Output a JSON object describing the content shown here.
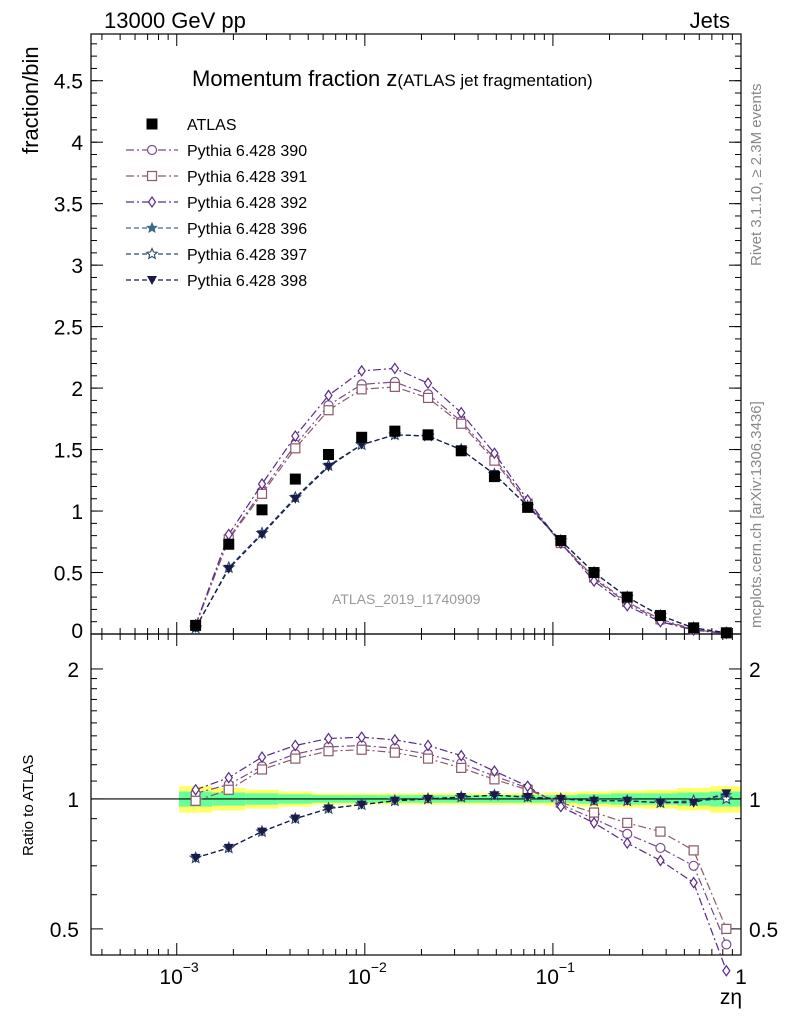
{
  "header": {
    "left": "13000 GeV pp",
    "right": "Jets"
  },
  "title": {
    "main": "Momentum fraction z",
    "sub": "(ATLAS jet fragmentation)"
  },
  "axes": {
    "ylabel_top": "fraction/bin",
    "ylabel_bottom": "Ratio to ATLAS",
    "xlabel": "zη"
  },
  "analysis_id": "ATLAS_2019_I1740909",
  "side_text": {
    "rivet": "Rivet 3.1.10, ≥ 2.3M events",
    "mcplots": "mcplots.cern.ch [arXiv:1306.3436]"
  },
  "chart_data": [
    {
      "type": "scatter",
      "xscale": "log",
      "xlim": [
        0.00035,
        1.0
      ],
      "ylim": [
        0,
        4.88
      ],
      "yticks": [
        0,
        0.5,
        1,
        1.5,
        2,
        2.5,
        3,
        3.5,
        4,
        4.5
      ],
      "ytick_labels": [
        "0",
        "0.5",
        "1",
        "1.5",
        "2",
        "2.5",
        "3",
        "3.5",
        "4",
        "4.5"
      ],
      "legend_placement": "top-left",
      "x": [
        0.00126,
        0.00189,
        0.00284,
        0.00427,
        0.00641,
        0.00962,
        0.01444,
        0.02168,
        0.03255,
        0.04887,
        0.07338,
        0.11018,
        0.16543,
        0.24839,
        0.37295,
        0.56,
        0.836
      ],
      "data": {
        "name": "ATLAS",
        "values": [
          0.07,
          0.73,
          1.01,
          1.26,
          1.46,
          1.6,
          1.65,
          1.62,
          1.49,
          1.28,
          1.03,
          0.76,
          0.5,
          0.3,
          0.15,
          0.05,
          0.01
        ]
      },
      "series": [
        {
          "name": "Pythia 6.428 390",
          "color": "#7a4a8a",
          "marker": "circle-open",
          "line": "dashdot",
          "values": [
            0.07,
            0.78,
            1.16,
            1.54,
            1.86,
            2.03,
            2.05,
            1.95,
            1.73,
            1.43,
            1.07,
            0.74,
            0.45,
            0.25,
            0.11,
            0.035,
            0.0045
          ]
        },
        {
          "name": "Pythia 6.428 391",
          "color": "#8a5a6a",
          "marker": "square-open",
          "line": "dashdot",
          "values": [
            0.07,
            0.77,
            1.14,
            1.51,
            1.82,
            1.99,
            2.01,
            1.92,
            1.71,
            1.41,
            1.06,
            0.74,
            0.46,
            0.26,
            0.12,
            0.038,
            0.005
          ]
        },
        {
          "name": "Pythia 6.428 392",
          "color": "#5a2a8a",
          "marker": "diamond-open",
          "line": "dashdot",
          "values": [
            0.075,
            0.81,
            1.22,
            1.61,
            1.94,
            2.14,
            2.16,
            2.04,
            1.8,
            1.47,
            1.09,
            0.74,
            0.43,
            0.23,
            0.1,
            0.032,
            0.004
          ]
        },
        {
          "name": "Pythia 6.428 396",
          "color": "#3a6a8a",
          "marker": "star-filled",
          "line": "dashed",
          "values": [
            0.05,
            0.54,
            0.82,
            1.11,
            1.37,
            1.54,
            1.62,
            1.61,
            1.5,
            1.3,
            1.04,
            0.76,
            0.5,
            0.3,
            0.15,
            0.05,
            0.01
          ]
        },
        {
          "name": "Pythia 6.428 397",
          "color": "#2a4a6a",
          "marker": "star-open",
          "line": "dashed",
          "values": [
            0.05,
            0.54,
            0.82,
            1.11,
            1.37,
            1.54,
            1.62,
            1.61,
            1.5,
            1.3,
            1.04,
            0.76,
            0.5,
            0.3,
            0.15,
            0.05,
            0.01
          ]
        },
        {
          "name": "Pythia 6.428 398",
          "color": "#1a1a4a",
          "marker": "triangle-down-filled",
          "line": "dashed",
          "values": [
            0.05,
            0.53,
            0.81,
            1.1,
            1.36,
            1.54,
            1.62,
            1.61,
            1.5,
            1.3,
            1.04,
            0.76,
            0.5,
            0.3,
            0.15,
            0.05,
            0.01
          ]
        }
      ]
    },
    {
      "type": "line",
      "xscale": "log",
      "yscale": "log",
      "xlim": [
        0.00035,
        1.0
      ],
      "ylim": [
        0.435,
        2.41
      ],
      "yticks": [
        0.5,
        1,
        2
      ],
      "ytick_labels": [
        "0.5",
        "1",
        "2"
      ],
      "xticks": [
        0.001,
        0.01,
        0.1,
        1
      ],
      "xtick_labels": [
        "10",
        "10",
        "10",
        "1"
      ],
      "xtick_exponents": [
        "−3",
        "−2",
        "−1",
        ""
      ],
      "band_colors": {
        "outer": "#ffff66",
        "inner": "#66ff99"
      },
      "band_outer": [
        0.07,
        0.06,
        0.05,
        0.04,
        0.03,
        0.03,
        0.03,
        0.03,
        0.03,
        0.03,
        0.03,
        0.035,
        0.04,
        0.045,
        0.05,
        0.06,
        0.07
      ],
      "band_inner": [
        0.04,
        0.035,
        0.03,
        0.025,
        0.02,
        0.02,
        0.02,
        0.02,
        0.02,
        0.02,
        0.02,
        0.02,
        0.025,
        0.03,
        0.03,
        0.035,
        0.04
      ],
      "x": [
        0.00126,
        0.00189,
        0.00284,
        0.00427,
        0.00641,
        0.00962,
        0.01444,
        0.02168,
        0.03255,
        0.04887,
        0.07338,
        0.11018,
        0.16543,
        0.24839,
        0.37295,
        0.56,
        0.836
      ],
      "series": [
        {
          "name": "Pythia 6.428 390",
          "values": [
            1.03,
            1.08,
            1.19,
            1.27,
            1.32,
            1.33,
            1.31,
            1.27,
            1.21,
            1.13,
            1.06,
            0.97,
            0.9,
            0.83,
            0.77,
            0.7,
            0.46
          ]
        },
        {
          "name": "Pythia 6.428 391",
          "values": [
            0.99,
            1.05,
            1.17,
            1.24,
            1.29,
            1.3,
            1.28,
            1.24,
            1.18,
            1.11,
            1.05,
            0.98,
            0.93,
            0.88,
            0.84,
            0.76,
            0.5
          ]
        },
        {
          "name": "Pythia 6.428 392",
          "values": [
            1.05,
            1.12,
            1.25,
            1.33,
            1.38,
            1.39,
            1.37,
            1.33,
            1.26,
            1.16,
            1.07,
            0.96,
            0.88,
            0.79,
            0.72,
            0.64,
            0.4
          ]
        },
        {
          "name": "Pythia 6.428 396",
          "values": [
            0.73,
            0.77,
            0.84,
            0.9,
            0.95,
            0.97,
            0.99,
            1.0,
            1.01,
            1.02,
            1.01,
            1.0,
            0.99,
            0.99,
            0.98,
            0.99,
            1.02
          ]
        },
        {
          "name": "Pythia 6.428 397",
          "values": [
            0.73,
            0.77,
            0.84,
            0.9,
            0.95,
            0.97,
            0.99,
            1.0,
            1.01,
            1.02,
            1.01,
            1.0,
            0.99,
            0.99,
            0.98,
            0.99,
            1.0
          ]
        },
        {
          "name": "Pythia 6.428 398",
          "values": [
            0.73,
            0.77,
            0.84,
            0.9,
            0.95,
            0.97,
            0.99,
            1.0,
            1.01,
            1.02,
            1.01,
            1.0,
            0.99,
            0.99,
            0.98,
            0.98,
            1.03
          ]
        }
      ]
    }
  ]
}
